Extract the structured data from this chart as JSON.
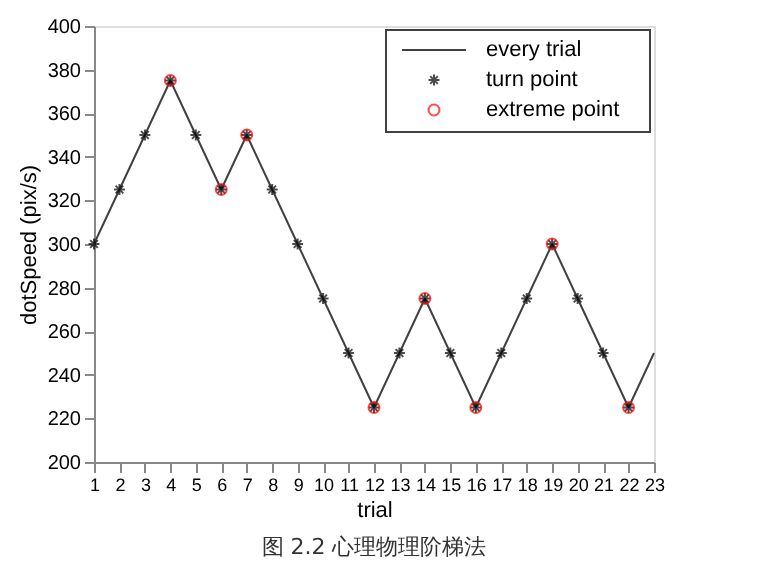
{
  "chart_data": {
    "type": "line",
    "title": "图 2.2 心理物理阶梯法",
    "xlabel": "trial",
    "ylabel": "dotSpeed (pix/s)",
    "xlim": [
      1,
      23
    ],
    "xticks": [
      1,
      2,
      3,
      4,
      5,
      6,
      7,
      8,
      9,
      10,
      11,
      12,
      13,
      14,
      15,
      16,
      17,
      18,
      19,
      20,
      21,
      22,
      23
    ],
    "ylim": [
      200,
      400
    ],
    "yticks": [
      200,
      220,
      240,
      260,
      280,
      300,
      320,
      340,
      360,
      380,
      400
    ],
    "grid": false,
    "legend": "top right",
    "series": [
      {
        "name": "every trial",
        "color": "#404040",
        "x": [
          1,
          2,
          3,
          4,
          5,
          6,
          7,
          8,
          9,
          10,
          11,
          12,
          13,
          14,
          15,
          16,
          17,
          18,
          19,
          20,
          21,
          22,
          23
        ],
        "values": [
          300,
          325,
          350,
          375,
          350,
          325,
          350,
          325,
          300,
          275,
          250,
          225,
          250,
          275,
          250,
          225,
          250,
          275,
          300,
          275,
          250,
          225,
          250
        ]
      },
      {
        "name": "turn point",
        "type": "scatter",
        "marker": "cross",
        "color": "#000000",
        "x": [
          1,
          2,
          3,
          4,
          5,
          6,
          7,
          8,
          9,
          10,
          11,
          12,
          13,
          14,
          15,
          16,
          17,
          18,
          19,
          20,
          21,
          22
        ],
        "values": [
          300,
          325,
          350,
          375,
          350,
          325,
          350,
          325,
          300,
          275,
          250,
          225,
          250,
          275,
          250,
          225,
          250,
          275,
          300,
          275,
          250,
          225
        ]
      },
      {
        "name": "extreme point",
        "type": "scatter",
        "marker": "circle",
        "color": "#ff0000",
        "x": [
          4,
          6,
          7,
          12,
          14,
          16,
          19,
          22
        ],
        "values": [
          375,
          325,
          350,
          225,
          275,
          225,
          300,
          225
        ]
      }
    ]
  }
}
